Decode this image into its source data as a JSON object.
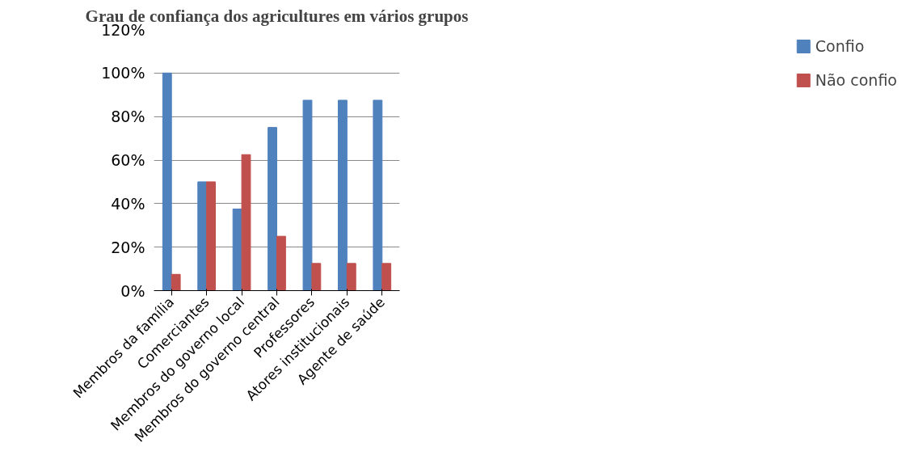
{
  "chart_data": {
    "type": "bar",
    "title": "Grau de confiança dos agricultures em vários grupos",
    "categories": [
      "Membros da família",
      "Comerciantes",
      "Membros do governo local",
      "Membros do governo central",
      "Professores",
      "Atores institucionais",
      "Agente de saúde"
    ],
    "series": [
      {
        "name": "Confio",
        "color": "#4f81bd",
        "values": [
          100,
          50,
          37.5,
          75,
          87.5,
          87.5,
          87.5
        ]
      },
      {
        "name": "Não confio",
        "color": "#c0504d",
        "values": [
          7.5,
          50,
          62.5,
          25,
          12.5,
          12.5,
          12.5
        ]
      }
    ],
    "ylim": [
      0,
      120
    ],
    "yticks": [
      {
        "value": 0,
        "label": "0%"
      },
      {
        "value": 20,
        "label": "20%"
      },
      {
        "value": 40,
        "label": "40%"
      },
      {
        "value": 60,
        "label": "60%"
      },
      {
        "value": 80,
        "label": "80%"
      },
      {
        "value": 100,
        "label": "100%"
      },
      {
        "value": 120,
        "label": "120%"
      }
    ],
    "grid": "y",
    "legend": "right"
  }
}
